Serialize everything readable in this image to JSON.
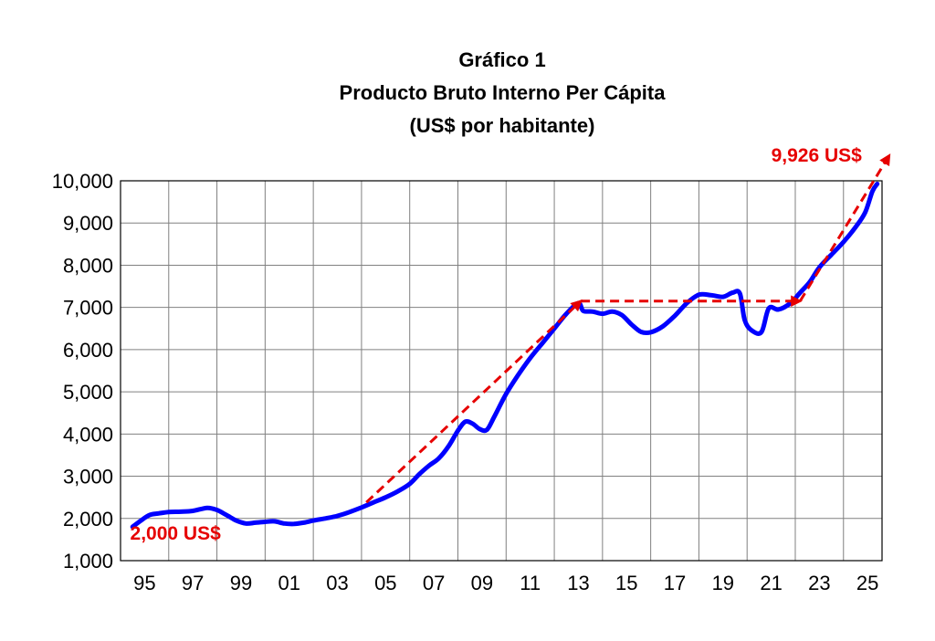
{
  "chart_data": {
    "type": "line",
    "title": "Gráfico 1",
    "subtitle": "Producto Bruto Interno Per Cápita",
    "units_label": "(US$ por habitante)",
    "xlabel": "",
    "ylabel": "",
    "ylim": [
      1000,
      10000
    ],
    "xlim": [
      1994.0,
      2025.6
    ],
    "grid": true,
    "colors": {
      "series": "#0000ff",
      "trend": "#e60000",
      "grid": "#808080"
    },
    "y_ticks": [
      {
        "value": 1000,
        "label": "1,000"
      },
      {
        "value": 2000,
        "label": "2,000"
      },
      {
        "value": 3000,
        "label": "3,000"
      },
      {
        "value": 4000,
        "label": "4,000"
      },
      {
        "value": 5000,
        "label": "5,000"
      },
      {
        "value": 6000,
        "label": "6,000"
      },
      {
        "value": 7000,
        "label": "7,000"
      },
      {
        "value": 8000,
        "label": "8,000"
      },
      {
        "value": 9000,
        "label": "9,000"
      },
      {
        "value": 10000,
        "label": "10,000"
      }
    ],
    "x_tick_labels": [
      {
        "value": 1995,
        "label": "95"
      },
      {
        "value": 1997,
        "label": "97"
      },
      {
        "value": 1999,
        "label": "99"
      },
      {
        "value": 2001,
        "label": "01"
      },
      {
        "value": 2003,
        "label": "03"
      },
      {
        "value": 2005,
        "label": "05"
      },
      {
        "value": 2007,
        "label": "07"
      },
      {
        "value": 2009,
        "label": "09"
      },
      {
        "value": 2011,
        "label": "11"
      },
      {
        "value": 2013,
        "label": "13"
      },
      {
        "value": 2015,
        "label": "15"
      },
      {
        "value": 2017,
        "label": "17"
      },
      {
        "value": 2019,
        "label": "19"
      },
      {
        "value": 2021,
        "label": "21"
      },
      {
        "value": 2023,
        "label": "23"
      },
      {
        "value": 2025,
        "label": "25"
      }
    ],
    "x_grid_years": [
      1994.0,
      1996,
      1998,
      2000,
      2002,
      2004,
      2006,
      2008,
      2010,
      2012,
      2014,
      2016,
      2018,
      2020,
      2022,
      2024,
      2025.6
    ],
    "series": [
      {
        "points": [
          [
            1994.5,
            1800
          ],
          [
            1994.8,
            1930
          ],
          [
            1995.2,
            2080
          ],
          [
            1995.6,
            2120
          ],
          [
            1996.0,
            2150
          ],
          [
            1996.5,
            2160
          ],
          [
            1997.0,
            2180
          ],
          [
            1997.6,
            2250
          ],
          [
            1998.0,
            2200
          ],
          [
            1998.4,
            2080
          ],
          [
            1998.8,
            1950
          ],
          [
            1999.2,
            1880
          ],
          [
            1999.6,
            1900
          ],
          [
            2000.0,
            1920
          ],
          [
            2000.4,
            1930
          ],
          [
            2000.8,
            1880
          ],
          [
            2001.2,
            1870
          ],
          [
            2001.6,
            1900
          ],
          [
            2002.0,
            1950
          ],
          [
            2002.5,
            2000
          ],
          [
            2003.0,
            2060
          ],
          [
            2003.5,
            2150
          ],
          [
            2004.0,
            2260
          ],
          [
            2004.5,
            2380
          ],
          [
            2005.0,
            2500
          ],
          [
            2005.5,
            2640
          ],
          [
            2006.0,
            2820
          ],
          [
            2006.4,
            3050
          ],
          [
            2006.8,
            3250
          ],
          [
            2007.2,
            3420
          ],
          [
            2007.6,
            3700
          ],
          [
            2008.0,
            4080
          ],
          [
            2008.3,
            4290
          ],
          [
            2008.6,
            4250
          ],
          [
            2008.9,
            4120
          ],
          [
            2009.2,
            4100
          ],
          [
            2009.5,
            4400
          ],
          [
            2010.0,
            4950
          ],
          [
            2010.5,
            5400
          ],
          [
            2011.0,
            5800
          ],
          [
            2011.5,
            6150
          ],
          [
            2012.0,
            6500
          ],
          [
            2012.5,
            6850
          ],
          [
            2013.0,
            7100
          ],
          [
            2013.2,
            6920
          ],
          [
            2013.6,
            6900
          ],
          [
            2014.0,
            6850
          ],
          [
            2014.4,
            6900
          ],
          [
            2014.8,
            6820
          ],
          [
            2015.2,
            6600
          ],
          [
            2015.6,
            6420
          ],
          [
            2016.0,
            6410
          ],
          [
            2016.5,
            6550
          ],
          [
            2017.0,
            6800
          ],
          [
            2017.5,
            7100
          ],
          [
            2018.0,
            7300
          ],
          [
            2018.5,
            7290
          ],
          [
            2019.0,
            7250
          ],
          [
            2019.4,
            7350
          ],
          [
            2019.7,
            7330
          ],
          [
            2019.9,
            6700
          ],
          [
            2020.2,
            6450
          ],
          [
            2020.6,
            6420
          ],
          [
            2020.9,
            6980
          ],
          [
            2021.3,
            6950
          ],
          [
            2021.8,
            7100
          ],
          [
            2022.2,
            7350
          ],
          [
            2022.6,
            7600
          ],
          [
            2023.0,
            7950
          ],
          [
            2023.5,
            8250
          ],
          [
            2024.0,
            8550
          ],
          [
            2024.5,
            8900
          ],
          [
            2024.9,
            9250
          ],
          [
            2025.2,
            9750
          ],
          [
            2025.4,
            9926
          ]
        ]
      }
    ],
    "trend_arrows": [
      {
        "from": [
          2004.2,
          2380
        ],
        "to": [
          2013.1,
          7150
        ]
      },
      {
        "from": [
          2013.1,
          7150
        ],
        "to": [
          2022.2,
          7150
        ]
      },
      {
        "from": [
          2022.2,
          7150
        ],
        "to": [
          2025.9,
          10600
        ]
      }
    ],
    "annotations": [
      {
        "text": "2,000 US$",
        "x": 1994.4,
        "y": 1500,
        "color": "#e60000"
      },
      {
        "text": "9,926 US$",
        "x": 2021.0,
        "y": 10450,
        "color": "#e60000"
      }
    ]
  }
}
